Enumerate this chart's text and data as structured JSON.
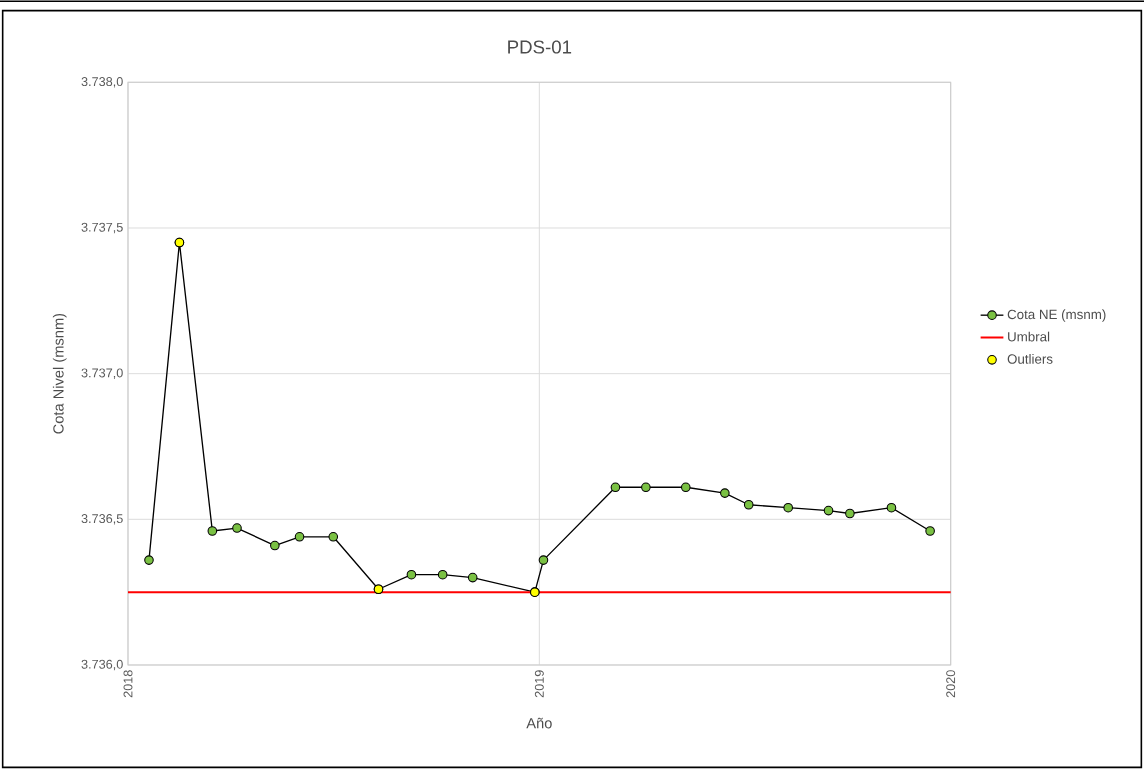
{
  "chart_data": {
    "type": "line",
    "title": "PDS-01",
    "xlabel": "Año",
    "ylabel": "Cota Nivel (msnm)",
    "xlim": [
      2018,
      2020
    ],
    "xticks": [
      2018,
      2019,
      2020
    ],
    "ylim": [
      3736,
      3738
    ],
    "yticks": [
      {
        "value": 3736,
        "label": "3.736,0"
      },
      {
        "value": 3736.5,
        "label": "3.736,5"
      },
      {
        "value": 3737,
        "label": "3.737,0"
      },
      {
        "value": 3737.5,
        "label": "3.737,5"
      },
      {
        "value": 3738,
        "label": "3.738,0"
      }
    ],
    "grid": true,
    "legend": "right",
    "series": [
      {
        "name": "Cota NE (msnm)",
        "type": "line",
        "marker": "circle",
        "color": "#7ac143",
        "x": [
          2018.051,
          2018.125,
          2018.205,
          2018.265,
          2018.357,
          2018.417,
          2018.499,
          2018.609,
          2018.689,
          2018.765,
          2018.838,
          2018.989,
          2019.01,
          2019.185,
          2019.259,
          2019.356,
          2019.451,
          2019.509,
          2019.605,
          2019.703,
          2019.755,
          2019.856,
          2019.95
        ],
        "values": [
          3736.36,
          3737.45,
          3736.46,
          3736.47,
          3736.41,
          3736.44,
          3736.44,
          3736.26,
          3736.31,
          3736.31,
          3736.3,
          3736.25,
          3736.36,
          3736.61,
          3736.61,
          3736.61,
          3736.59,
          3736.55,
          3736.54,
          3736.53,
          3736.52,
          3736.54,
          3736.46
        ]
      },
      {
        "name": "Umbral",
        "type": "line",
        "marker": "none",
        "color": "#ff0000",
        "x": [
          2018,
          2020
        ],
        "values": [
          3736.25,
          3736.25
        ]
      },
      {
        "name": "Outliers",
        "type": "scatter",
        "marker": "circle",
        "color": "#ffff00",
        "x": [
          2018.125,
          2018.609,
          2018.989
        ],
        "values": [
          3737.45,
          3736.26,
          3736.25
        ]
      }
    ]
  }
}
